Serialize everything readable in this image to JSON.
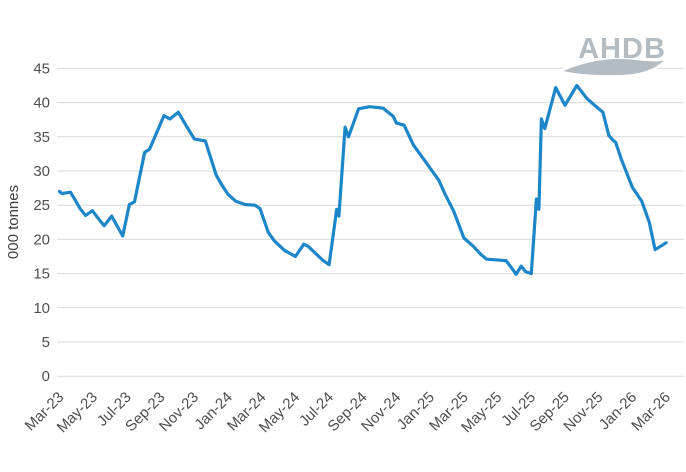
{
  "logo": {
    "text": "AHDB"
  },
  "colors": {
    "line": "#1d86c9",
    "grid": "#d9d9d9",
    "tick_text": "#4f4f4f",
    "axis_title_text": "#3f3f3f",
    "logo": "#b3bcc3",
    "background": "#ffffff"
  },
  "chart_data": {
    "type": "line",
    "title": "",
    "xlabel": "",
    "ylabel": "000 tonnes",
    "ylim": [
      0,
      45
    ],
    "yticks": [
      0,
      5,
      10,
      15,
      20,
      25,
      30,
      35,
      40,
      45
    ],
    "grid": "horizontal",
    "legend": "none",
    "x_unit": "months since Mar-23 (0 = Mar-23, 36 = Mar-26), monthly axis ticks every 2 months",
    "xtick_months": [
      0,
      2,
      4,
      6,
      8,
      10,
      12,
      14,
      16,
      18,
      20,
      22,
      24,
      26,
      28,
      30,
      32,
      34,
      36
    ],
    "xtick_labels": [
      "Mar-23",
      "May-23",
      "Jul-23",
      "Sep-23",
      "Nov-23",
      "Jan-24",
      "Mar-24",
      "May-24",
      "Jul-24",
      "Sep-24",
      "Nov-24",
      "Jan-25",
      "Mar-25",
      "May-25",
      "Jul-25",
      "Sep-25",
      "Nov-25",
      "Jan-26",
      "Mar-26"
    ],
    "series": [
      {
        "name": "production-000-tonnes",
        "points": [
          [
            0.0,
            27.0
          ],
          [
            0.15,
            26.7
          ],
          [
            0.65,
            26.9
          ],
          [
            1.25,
            24.4
          ],
          [
            1.55,
            23.5
          ],
          [
            1.95,
            24.2
          ],
          [
            2.35,
            22.9
          ],
          [
            2.65,
            22.0
          ],
          [
            3.1,
            23.4
          ],
          [
            3.75,
            20.5
          ],
          [
            4.15,
            25.1
          ],
          [
            4.45,
            25.5
          ],
          [
            5.05,
            32.7
          ],
          [
            5.35,
            33.2
          ],
          [
            6.2,
            38.1
          ],
          [
            6.55,
            37.6
          ],
          [
            7.05,
            38.6
          ],
          [
            7.5,
            36.7
          ],
          [
            8.0,
            34.7
          ],
          [
            8.65,
            34.4
          ],
          [
            9.3,
            29.4
          ],
          [
            9.65,
            27.9
          ],
          [
            10.0,
            26.6
          ],
          [
            10.45,
            25.6
          ],
          [
            11.0,
            25.1
          ],
          [
            11.6,
            25.0
          ],
          [
            11.9,
            24.5
          ],
          [
            12.4,
            21.0
          ],
          [
            12.75,
            19.8
          ],
          [
            13.35,
            18.4
          ],
          [
            14.0,
            17.5
          ],
          [
            14.5,
            19.3
          ],
          [
            14.75,
            19.0
          ],
          [
            15.6,
            17.0
          ],
          [
            16.0,
            16.3
          ],
          [
            16.45,
            24.4
          ],
          [
            16.58,
            23.4
          ],
          [
            16.95,
            36.4
          ],
          [
            17.15,
            35.0
          ],
          [
            17.75,
            39.1
          ],
          [
            18.4,
            39.4
          ],
          [
            19.2,
            39.2
          ],
          [
            19.8,
            38.0
          ],
          [
            20.0,
            37.0
          ],
          [
            20.45,
            36.7
          ],
          [
            21.0,
            33.8
          ],
          [
            21.5,
            32.1
          ],
          [
            22.0,
            30.4
          ],
          [
            22.5,
            28.7
          ],
          [
            22.9,
            26.5
          ],
          [
            23.4,
            24.1
          ],
          [
            24.0,
            20.2
          ],
          [
            24.55,
            19.0
          ],
          [
            25.0,
            17.8
          ],
          [
            25.35,
            17.1
          ],
          [
            26.5,
            16.9
          ],
          [
            26.9,
            15.6
          ],
          [
            27.1,
            14.9
          ],
          [
            27.4,
            16.1
          ],
          [
            27.65,
            15.3
          ],
          [
            28.0,
            15.0
          ],
          [
            28.3,
            25.9
          ],
          [
            28.45,
            24.4
          ],
          [
            28.6,
            37.6
          ],
          [
            28.8,
            36.2
          ],
          [
            29.45,
            42.2
          ],
          [
            30.0,
            39.6
          ],
          [
            30.7,
            42.5
          ],
          [
            31.3,
            40.6
          ],
          [
            32.0,
            39.1
          ],
          [
            32.25,
            38.6
          ],
          [
            32.6,
            35.2
          ],
          [
            32.85,
            34.5
          ],
          [
            33.0,
            34.2
          ],
          [
            33.35,
            31.7
          ],
          [
            34.0,
            27.6
          ],
          [
            34.55,
            25.6
          ],
          [
            35.0,
            22.5
          ],
          [
            35.35,
            18.5
          ],
          [
            36.0,
            19.5
          ]
        ]
      }
    ]
  }
}
